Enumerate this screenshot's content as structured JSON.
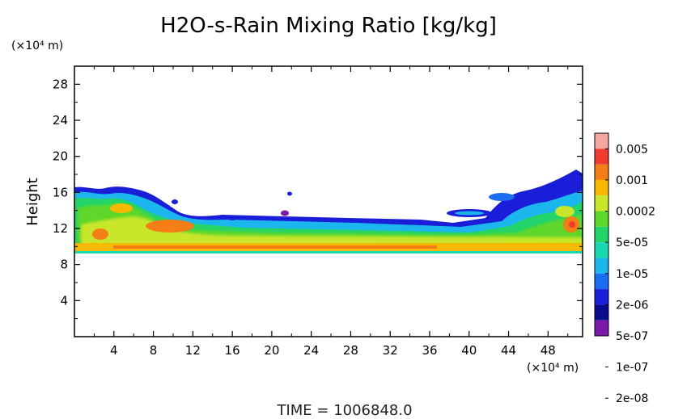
{
  "chart_data": {
    "type": "heatmap",
    "title": "H2O-s-Rain Mixing Ratio [kg/kg]",
    "xlabel": "",
    "ylabel": "Height",
    "x_unit_label": "(×10⁴ m)",
    "y_unit_label": "(×10⁴ m)",
    "xlim": [
      0,
      51.5
    ],
    "ylim": [
      0,
      30
    ],
    "xticks": [
      4,
      8,
      12,
      16,
      20,
      24,
      28,
      32,
      36,
      40,
      44,
      48
    ],
    "yticks": [
      4,
      8,
      12,
      16,
      20,
      24,
      28
    ],
    "colorbar": {
      "labels": [
        "0.005",
        "0.001",
        "0.0002",
        "5e-05",
        "1e-05",
        "2e-06",
        "5e-07",
        "1e-07",
        "2e-08"
      ],
      "colors": [
        "#f4a6a0",
        "#f03c2e",
        "#f57f17",
        "#f7b800",
        "#c8e62a",
        "#5fd62a",
        "#22d46a",
        "#19d9b0",
        "#1cb6ee",
        "#1a6cf0",
        "#1a1ed8",
        "#0a0a8c",
        "#7a1aa8"
      ]
    },
    "regions": [
      {
        "level": "1e-07",
        "x": [
          0,
          51.5
        ],
        "y": [
          9.3,
          16.2
        ]
      },
      {
        "level": "2e-06",
        "x": [
          0,
          51.5
        ],
        "y": [
          9.4,
          15.5
        ]
      },
      {
        "level": "5e-05",
        "x": [
          0,
          51.5
        ],
        "y": [
          9.4,
          11.6
        ]
      },
      {
        "level": "0.0002",
        "x": [
          0,
          51.5
        ],
        "y": [
          9.6,
          10.3
        ]
      },
      {
        "level": "0.001",
        "x": [
          8,
          10
        ],
        "y": [
          12.2,
          12.9
        ]
      },
      {
        "level": "1e-07",
        "x": [
          44.5,
          51.5
        ],
        "y": [
          11.5,
          18.2
        ]
      },
      {
        "level": "0.001",
        "x": [
          49.5,
          51.5
        ],
        "y": [
          12.0,
          13.3
        ]
      }
    ]
  },
  "footer": {
    "time_label": "TIME",
    "time_value": "1006848.0"
  }
}
